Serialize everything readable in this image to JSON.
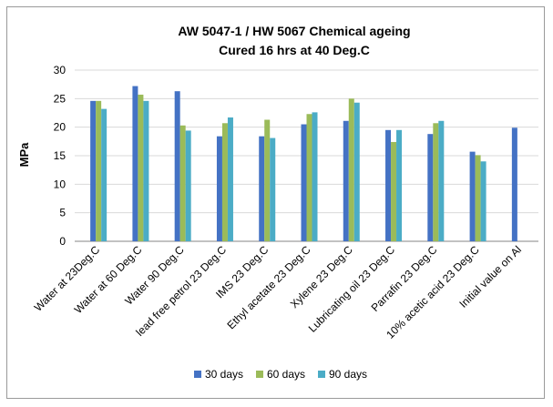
{
  "chart_data": {
    "type": "bar",
    "title": "AW 5047-1 / HW 5067 Chemical ageing",
    "subtitle": "Cured 16 hrs at 40 Deg.C",
    "xlabel": "",
    "ylabel": "MPa",
    "ylim": [
      0,
      30
    ],
    "yticks": [
      0,
      5,
      10,
      15,
      20,
      25,
      30
    ],
    "grid": true,
    "legend_position": "bottom",
    "categories": [
      "Water at 23Deg.C",
      "Water at 60 Deg.C",
      "Water 90 Deg.C",
      "lead free petrol 23 Deg.C",
      "IMS 23 Deg.C",
      "Ethyl acetate 23 Deg.C",
      "Xylene 23 Deg.C",
      "Lubricating oil 23 Deg.C",
      "Parrafin 23 Deg.C",
      "10% acetic acid  23 Deg.C",
      "Initial value on Al"
    ],
    "series": [
      {
        "name": "30 days",
        "color": "#4472C4",
        "values": [
          24.6,
          27.2,
          26.3,
          18.4,
          18.4,
          20.5,
          21.1,
          19.5,
          18.8,
          15.7,
          19.9
        ]
      },
      {
        "name": "60 days",
        "color": "#9BBB59",
        "values": [
          24.6,
          25.7,
          20.3,
          20.7,
          21.3,
          22.3,
          25.0,
          17.4,
          20.7,
          15.1,
          null
        ]
      },
      {
        "name": "90 days",
        "color": "#4BACC6",
        "values": [
          23.2,
          24.6,
          19.4,
          21.7,
          18.1,
          22.6,
          24.3,
          19.5,
          21.1,
          14.0,
          null
        ]
      }
    ]
  }
}
